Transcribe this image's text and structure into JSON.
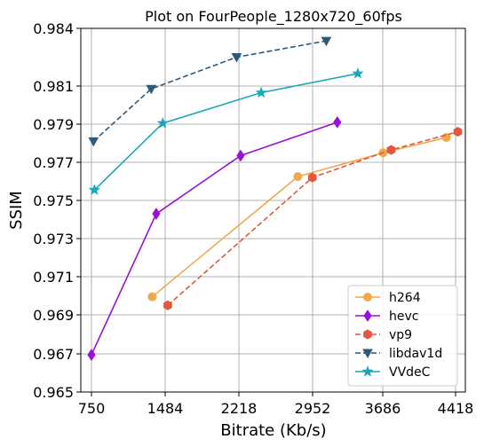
{
  "chart_data": {
    "type": "line",
    "title": "Plot on FourPeople_1280x720_60fps",
    "xlabel": "Bitrate (Kb/s)",
    "ylabel": "SSIM",
    "xlim": [
      700,
      4470
    ],
    "ylim": [
      0.965,
      0.984
    ],
    "xticks": [
      750,
      1484,
      2218,
      2952,
      3686,
      4418
    ],
    "yticks": [
      0.965,
      0.967,
      0.969,
      0.971,
      0.973,
      0.975,
      0.977,
      0.979,
      0.981,
      0.984
    ],
    "ytick_labels": [
      "0.965",
      "0.967",
      "0.969",
      "0.971",
      "0.973",
      "0.975",
      "0.977",
      "0.979",
      "0.981",
      "0.984"
    ],
    "grid": true,
    "legend_position": "lower-right",
    "series": [
      {
        "name": "h264",
        "color": "#f0a84c",
        "marker": "circle",
        "dashed": false,
        "x": [
          1355,
          2805,
          3690,
          4325
        ],
        "y": [
          0.96995,
          0.97625,
          0.9775,
          0.9783
        ]
      },
      {
        "name": "hevc",
        "color": "#9a10d8",
        "marker": "diamond",
        "dashed": false,
        "x": [
          750,
          1395,
          2235,
          3210
        ],
        "y": [
          0.96695,
          0.9743,
          0.97735,
          0.9791
        ]
      },
      {
        "name": "vp9",
        "color": "#e3573d",
        "marker": "hexagon",
        "dashed": true,
        "x": [
          1510,
          2950,
          3770,
          4430
        ],
        "y": [
          0.9695,
          0.9762,
          0.97765,
          0.9786
        ]
      },
      {
        "name": "libdav1d",
        "color": "#2e5a7a",
        "marker": "triangle-down",
        "dashed": true,
        "x": [
          770,
          1345,
          2195,
          3095
        ],
        "y": [
          0.9781,
          0.98085,
          0.9825,
          0.98335
        ]
      },
      {
        "name": "VVdeC",
        "color": "#1aa7b8",
        "marker": "star",
        "dashed": false,
        "x": [
          780,
          1460,
          2440,
          3425
        ],
        "y": [
          0.97555,
          0.97905,
          0.98065,
          0.98165
        ]
      }
    ]
  }
}
